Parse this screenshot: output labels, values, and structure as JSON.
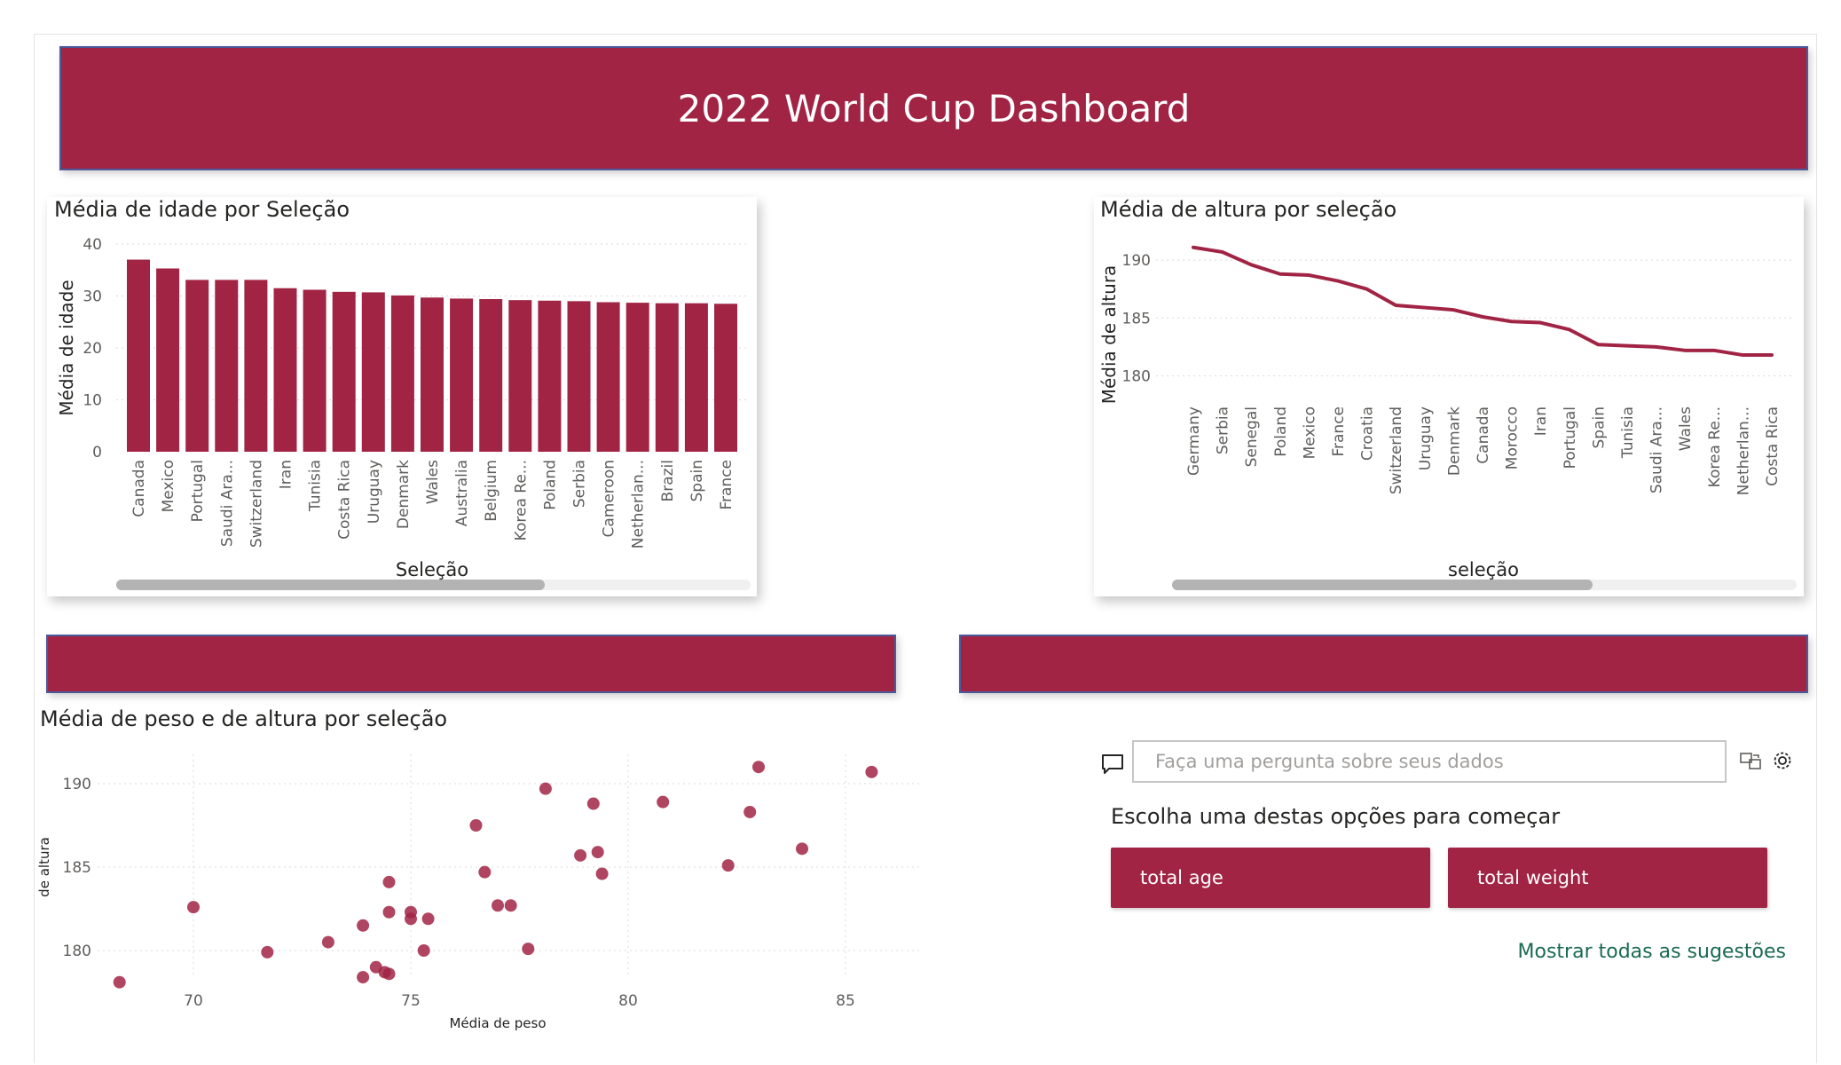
{
  "dashboard": {
    "title": "2022 World Cup Dashboard"
  },
  "colors": {
    "accent": "#a12444",
    "banner_border": "#4a5a9a",
    "link": "#1a6b4f"
  },
  "age_chart": {
    "title": "Média de idade por Seleção",
    "xlabel": "Seleção",
    "ylabel": "Média de idade",
    "yticks": [
      "0",
      "10",
      "20",
      "30",
      "40"
    ]
  },
  "height_chart": {
    "title": "Média de altura por seleção",
    "xlabel": "seleção",
    "ylabel": "Média de altura",
    "yticks": [
      "180",
      "185",
      "190"
    ]
  },
  "scatter_chart": {
    "title": "Média de peso e de altura por seleção",
    "xlabel": "Média de peso",
    "ylabel": "de altura",
    "xticks": [
      "70",
      "75",
      "80",
      "85"
    ],
    "yticks": [
      "180",
      "185",
      "190"
    ]
  },
  "chart_data": [
    {
      "type": "bar",
      "title": "Média de idade por Seleção",
      "xlabel": "Seleção",
      "ylabel": "Média de idade",
      "ylim": [
        0,
        40
      ],
      "grid": true,
      "categories": [
        "Canada",
        "Mexico",
        "Portugal",
        "Saudi Ara...",
        "Switzerland",
        "Iran",
        "Tunisia",
        "Costa Rica",
        "Uruguay",
        "Denmark",
        "Wales",
        "Australia",
        "Belgium",
        "Korea Re...",
        "Poland",
        "Serbia",
        "Cameroon",
        "Netherlan...",
        "Brazil",
        "Spain",
        "France"
      ],
      "values": [
        37.0,
        35.3,
        33.1,
        33.1,
        33.1,
        31.5,
        31.2,
        30.8,
        30.7,
        30.1,
        29.7,
        29.5,
        29.4,
        29.2,
        29.1,
        29.0,
        28.8,
        28.7,
        28.6,
        28.6,
        28.5
      ]
    },
    {
      "type": "line",
      "title": "Média de altura por seleção",
      "xlabel": "seleção",
      "ylabel": "Média de altura",
      "ylim": [
        178.2,
        192
      ],
      "grid": true,
      "categories": [
        "Germany",
        "Serbia",
        "Senegal",
        "Poland",
        "Mexico",
        "France",
        "Croatia",
        "Switzerland",
        "Uruguay",
        "Denmark",
        "Canada",
        "Morocco",
        "Iran",
        "Portugal",
        "Spain",
        "Tunisia",
        "Saudi Ara...",
        "Wales",
        "Korea Re...",
        "Netherlan...",
        "Costa Rica"
      ],
      "values": [
        191.1,
        190.7,
        189.6,
        188.8,
        188.7,
        188.2,
        187.5,
        186.1,
        185.9,
        185.7,
        185.1,
        184.7,
        184.6,
        184.0,
        182.7,
        182.6,
        182.5,
        182.2,
        182.2,
        181.8,
        181.8
      ]
    },
    {
      "type": "scatter",
      "title": "Média de peso e de altura por seleção",
      "xlabel": "Média de peso",
      "ylabel": "de altura",
      "xlim": [
        68,
        87
      ],
      "ylim": [
        178,
        192
      ],
      "grid": true,
      "points": [
        [
          68.3,
          178.1
        ],
        [
          70.0,
          182.6
        ],
        [
          71.7,
          179.9
        ],
        [
          73.1,
          180.5
        ],
        [
          73.9,
          178.4
        ],
        [
          73.9,
          181.5
        ],
        [
          74.2,
          179.0
        ],
        [
          74.4,
          178.7
        ],
        [
          74.5,
          178.6
        ],
        [
          74.5,
          184.1
        ],
        [
          74.5,
          182.3
        ],
        [
          75.0,
          182.3
        ],
        [
          75.0,
          181.9
        ],
        [
          75.3,
          180.0
        ],
        [
          75.4,
          181.9
        ],
        [
          76.5,
          187.5
        ],
        [
          76.7,
          184.7
        ],
        [
          77.0,
          182.7
        ],
        [
          77.3,
          182.7
        ],
        [
          77.7,
          180.1
        ],
        [
          78.1,
          189.7
        ],
        [
          78.9,
          185.7
        ],
        [
          79.2,
          188.8
        ],
        [
          79.3,
          185.9
        ],
        [
          79.4,
          184.6
        ],
        [
          80.8,
          188.9
        ],
        [
          82.3,
          185.1
        ],
        [
          82.8,
          188.3
        ],
        [
          83.0,
          191.0
        ],
        [
          84.0,
          186.1
        ],
        [
          85.6,
          190.7
        ]
      ]
    }
  ],
  "qa": {
    "placeholder": "Faça uma pergunta sobre seus dados",
    "prompt": "Escolha uma destas opções para começar",
    "suggestions": [
      "total age",
      "total weight"
    ],
    "show_all": "Mostrar todas as sugestões"
  }
}
